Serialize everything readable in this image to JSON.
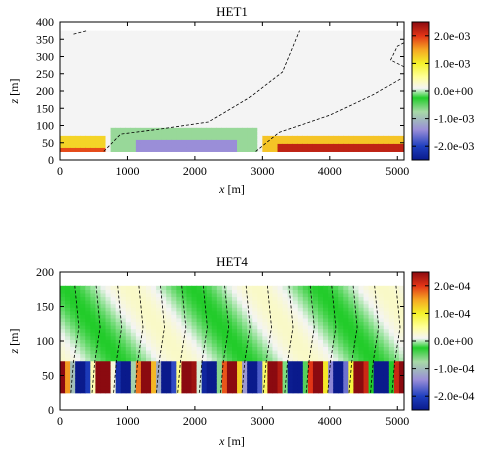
{
  "chart_data": [
    {
      "type": "heatmap",
      "title": "HET1",
      "xlabel_var": "x",
      "xlabel_unit": "[m]",
      "ylabel_var": "z",
      "ylabel_unit": "[m]",
      "xlim": [
        0,
        5100
      ],
      "ylim": [
        0,
        400
      ],
      "data_z_range": [
        25,
        375
      ],
      "xticks": [
        0,
        1000,
        2000,
        3000,
        4000,
        5000
      ],
      "yticks": [
        0,
        50,
        100,
        150,
        200,
        250,
        300,
        350,
        400
      ],
      "grid": false,
      "legend": "colorbar-right",
      "colorbar": {
        "range": [
          -0.0025,
          0.0025
        ],
        "ticks": [
          0.002,
          0.001,
          0.0,
          -0.001,
          -0.002
        ],
        "tick_labels": [
          "2.0e-03",
          "1.0e-03",
          "0.0e+00",
          "-1.0e-03",
          "-2.0e-03"
        ]
      },
      "contour_zero_level": [
        [
          650,
          25
        ],
        [
          900,
          75
        ],
        [
          1500,
          90
        ],
        [
          2200,
          110
        ],
        [
          2800,
          180
        ],
        [
          3300,
          255
        ],
        [
          3550,
          375
        ]
      ],
      "contour_zero_level_2": [
        [
          2900,
          25
        ],
        [
          3250,
          80
        ],
        [
          4000,
          130
        ],
        [
          4650,
          190
        ],
        [
          5050,
          235
        ]
      ],
      "contour_zero_level_3": [
        [
          200,
          365
        ],
        [
          400,
          375
        ]
      ],
      "contour_zero_level_4": [
        [
          5100,
          270
        ],
        [
          4900,
          290
        ],
        [
          5000,
          330
        ],
        [
          5100,
          340
        ]
      ],
      "regions": [
        {
          "x": [
            0,
            5100
          ],
          "z": [
            25,
            375
          ],
          "value": 0.0001
        },
        {
          "x": [
            0,
            700
          ],
          "z": [
            25,
            70
          ],
          "value": 0.0012
        },
        {
          "x": [
            0,
            700
          ],
          "z": [
            25,
            40
          ],
          "value": 0.0019
        },
        {
          "x": [
            750,
            2900
          ],
          "z": [
            25,
            100
          ],
          "value": -0.0007
        },
        {
          "x": [
            1100,
            2600
          ],
          "z": [
            25,
            55
          ],
          "value": -0.0014
        },
        {
          "x": [
            3000,
            5100
          ],
          "z": [
            25,
            75
          ],
          "value": 0.0013
        },
        {
          "x": [
            3200,
            5100
          ],
          "z": [
            25,
            45
          ],
          "value": 0.0022
        }
      ]
    },
    {
      "type": "heatmap",
      "title": "HET4",
      "xlabel_var": "x",
      "xlabel_unit": "[m]",
      "ylabel_var": "z",
      "ylabel_unit": "[m]",
      "xlim": [
        0,
        5100
      ],
      "ylim": [
        0,
        200
      ],
      "data_z_range": [
        25,
        180
      ],
      "xticks": [
        0,
        1000,
        2000,
        3000,
        4000,
        5000
      ],
      "yticks": [
        0,
        50,
        100,
        150,
        200
      ],
      "grid": false,
      "legend": "colorbar-right",
      "colorbar": {
        "range": [
          -0.00025,
          0.00025
        ],
        "ticks": [
          0.0002,
          0.0001,
          0.0,
          -0.0001,
          -0.0002
        ],
        "tick_labels": [
          "2.0e-04",
          "1.0e-04",
          "0.0e+00",
          "-1.0e-04",
          "-2.0e-04"
        ]
      },
      "columns_period_m": 635,
      "column_centers_warm_m": [
        0,
        635,
        1270,
        1905,
        2540,
        3175,
        3810,
        4445,
        5080
      ],
      "warm_column_value": 0.00025,
      "cold_column_value": -0.00025,
      "surface_layer_top_z": 70,
      "upper_field_value": 3e-05
    }
  ]
}
